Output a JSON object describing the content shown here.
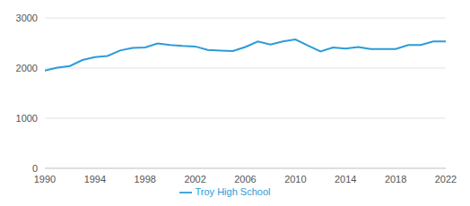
{
  "chart_data": {
    "type": "line",
    "x": [
      1990,
      1991,
      1992,
      1993,
      1994,
      1995,
      1996,
      1997,
      1998,
      1999,
      2000,
      2001,
      2002,
      2003,
      2004,
      2005,
      2006,
      2007,
      2008,
      2009,
      2010,
      2011,
      2012,
      2013,
      2014,
      2015,
      2016,
      2017,
      2018,
      2019,
      2020,
      2021,
      2022
    ],
    "series": [
      {
        "name": "Troy High School",
        "color": "#2b9cd8",
        "values": [
          1950,
          2010,
          2040,
          2160,
          2220,
          2240,
          2350,
          2400,
          2410,
          2490,
          2460,
          2440,
          2430,
          2360,
          2350,
          2340,
          2420,
          2530,
          2470,
          2530,
          2570,
          2450,
          2330,
          2410,
          2390,
          2420,
          2380,
          2380,
          2380,
          2460,
          2460,
          2530,
          2530
        ]
      }
    ],
    "xlim": [
      1990,
      2022
    ],
    "xticks": [
      1990,
      1994,
      1998,
      2002,
      2006,
      2010,
      2014,
      2018,
      2022
    ],
    "ylim": [
      0,
      3000
    ],
    "yticks": [
      0,
      1000,
      2000,
      3000
    ],
    "grid": true,
    "legend": "bottom"
  }
}
